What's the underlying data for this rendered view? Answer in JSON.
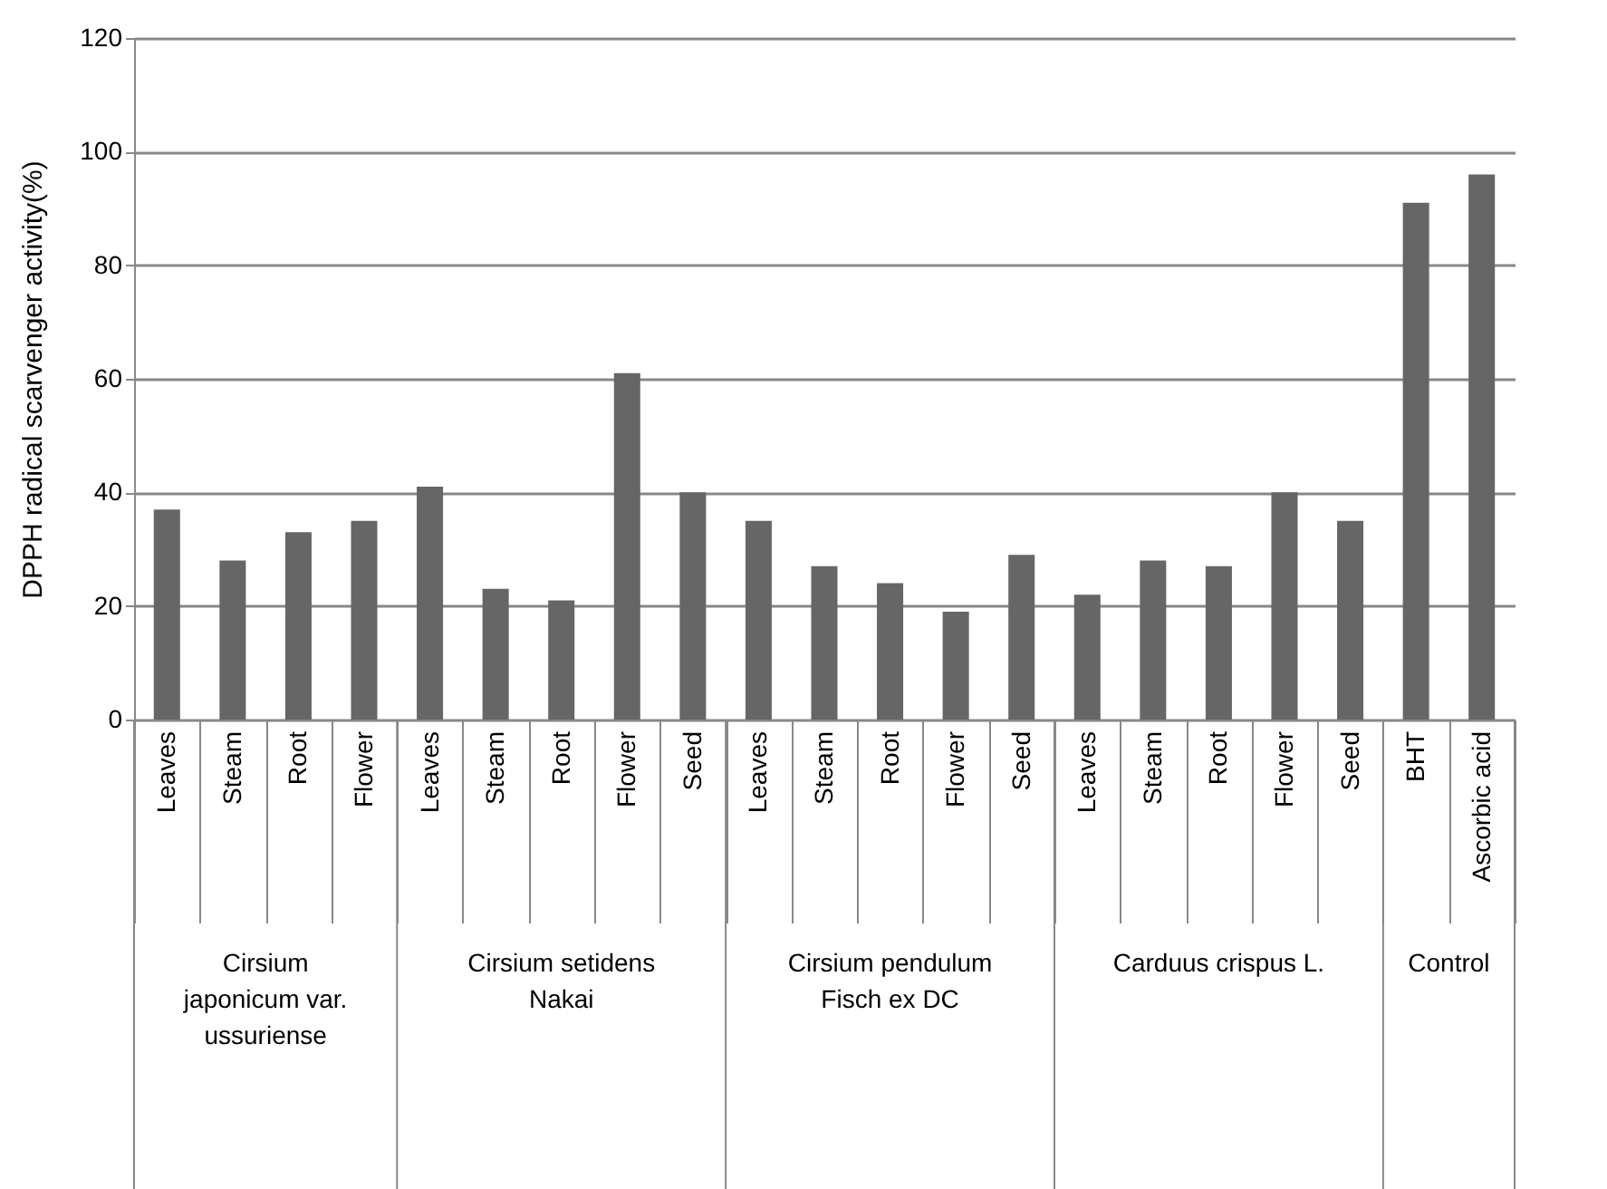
{
  "chart_data": {
    "type": "bar",
    "ylabel": "DPPH radical scarvenger activity(%)",
    "categories": [
      "Leaves",
      "Steam",
      "Root",
      "Flower",
      "Leaves",
      "Steam",
      "Root",
      "Flower",
      "Seed",
      "Leaves",
      "Steam",
      "Root",
      "Flower",
      "Seed",
      "Leaves",
      "Steam",
      "Root",
      "Flower",
      "Seed",
      "BHT",
      "Ascorbic acid"
    ],
    "values": [
      37,
      28,
      33,
      35,
      41,
      23,
      21,
      61,
      40,
      35,
      27,
      24,
      19,
      29,
      22,
      28,
      27,
      40,
      35,
      91,
      96
    ],
    "color": "#666666",
    "annotations": [
      "Cirsium japonicum var. ussuriense",
      "Cirsium setidens Nakai",
      "Cirsium pendulum Fisch ex DC",
      "Carduus crispus L.",
      "Control"
    ],
    "ylim": [
      0,
      120
    ],
    "yticks": [
      0,
      20,
      40,
      60,
      80,
      100,
      120
    ],
    "grid": "y"
  }
}
